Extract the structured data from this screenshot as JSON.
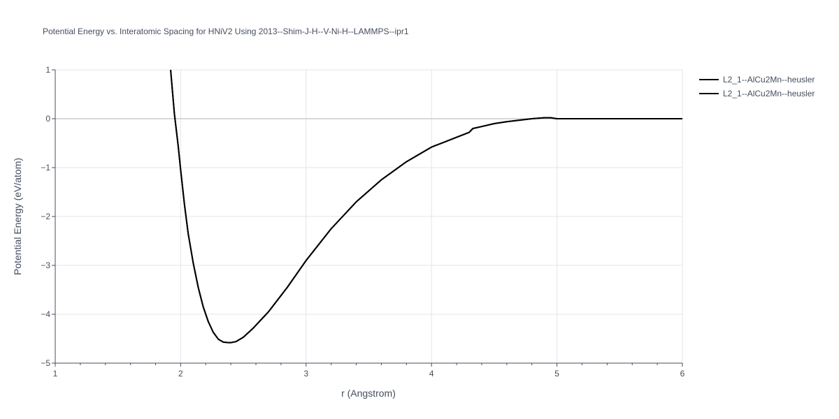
{
  "chart_data": {
    "type": "line",
    "title": "Potential Energy vs. Interatomic Spacing for HNiV2 Using 2013--Shim-J-H--V-Ni-H--LAMMPS--ipr1",
    "xlabel": "r (Angstrom)",
    "ylabel": "Potential Energy (eV/atom)",
    "xlim": [
      1,
      6
    ],
    "ylim": [
      -5,
      1
    ],
    "x_ticks": [
      "1",
      "2",
      "3",
      "4",
      "5",
      "6"
    ],
    "y_ticks": [
      "1",
      "0",
      "−1",
      "−2",
      "−3",
      "−4",
      "−5"
    ],
    "grid": true,
    "legend_position": "top-right",
    "colors": {
      "line": "#000000",
      "grid": "#e5e5e5",
      "zero_line": "#cccccc",
      "text": "#444e5e"
    },
    "series": [
      {
        "name": "L2_1--AlCu2Mn--heusler",
        "x": [
          1.92,
          1.95,
          1.98,
          2.0,
          2.03,
          2.06,
          2.1,
          2.14,
          2.18,
          2.22,
          2.26,
          2.3,
          2.34,
          2.38,
          2.4,
          2.44,
          2.5,
          2.58,
          2.7,
          2.85,
          3.0,
          3.2,
          3.4,
          3.6,
          3.8,
          4.0,
          4.2,
          4.3,
          4.33,
          4.4,
          4.5,
          4.6,
          4.7,
          4.8,
          4.9,
          4.95,
          5.0,
          5.5,
          6.0
        ],
        "y": [
          1.0,
          0.1,
          -0.55,
          -1.05,
          -1.75,
          -2.35,
          -2.95,
          -3.45,
          -3.85,
          -4.15,
          -4.37,
          -4.51,
          -4.57,
          -4.58,
          -4.58,
          -4.56,
          -4.47,
          -4.28,
          -3.95,
          -3.45,
          -2.9,
          -2.25,
          -1.7,
          -1.25,
          -0.88,
          -0.58,
          -0.38,
          -0.28,
          -0.2,
          -0.16,
          -0.1,
          -0.06,
          -0.03,
          0.0,
          0.02,
          0.02,
          0.0,
          0.0,
          0.0
        ]
      },
      {
        "name": "L2_1--AlCu2Mn--heusler",
        "x": [
          1.92,
          1.95,
          1.98,
          2.0,
          2.03,
          2.06,
          2.1,
          2.14,
          2.18,
          2.22,
          2.26,
          2.3,
          2.34,
          2.38,
          2.4,
          2.44,
          2.5,
          2.58,
          2.7,
          2.85,
          3.0,
          3.2,
          3.4,
          3.6,
          3.8,
          4.0,
          4.2,
          4.3,
          4.33,
          4.4,
          4.5,
          4.6,
          4.7,
          4.8,
          4.9,
          4.95,
          5.0,
          5.5,
          6.0
        ],
        "y": [
          1.0,
          0.1,
          -0.55,
          -1.05,
          -1.75,
          -2.35,
          -2.95,
          -3.45,
          -3.85,
          -4.15,
          -4.37,
          -4.51,
          -4.57,
          -4.58,
          -4.58,
          -4.56,
          -4.47,
          -4.28,
          -3.95,
          -3.45,
          -2.9,
          -2.25,
          -1.7,
          -1.25,
          -0.88,
          -0.58,
          -0.38,
          -0.28,
          -0.2,
          -0.16,
          -0.1,
          -0.06,
          -0.03,
          0.0,
          0.02,
          0.02,
          0.0,
          0.0,
          0.0
        ]
      }
    ]
  }
}
